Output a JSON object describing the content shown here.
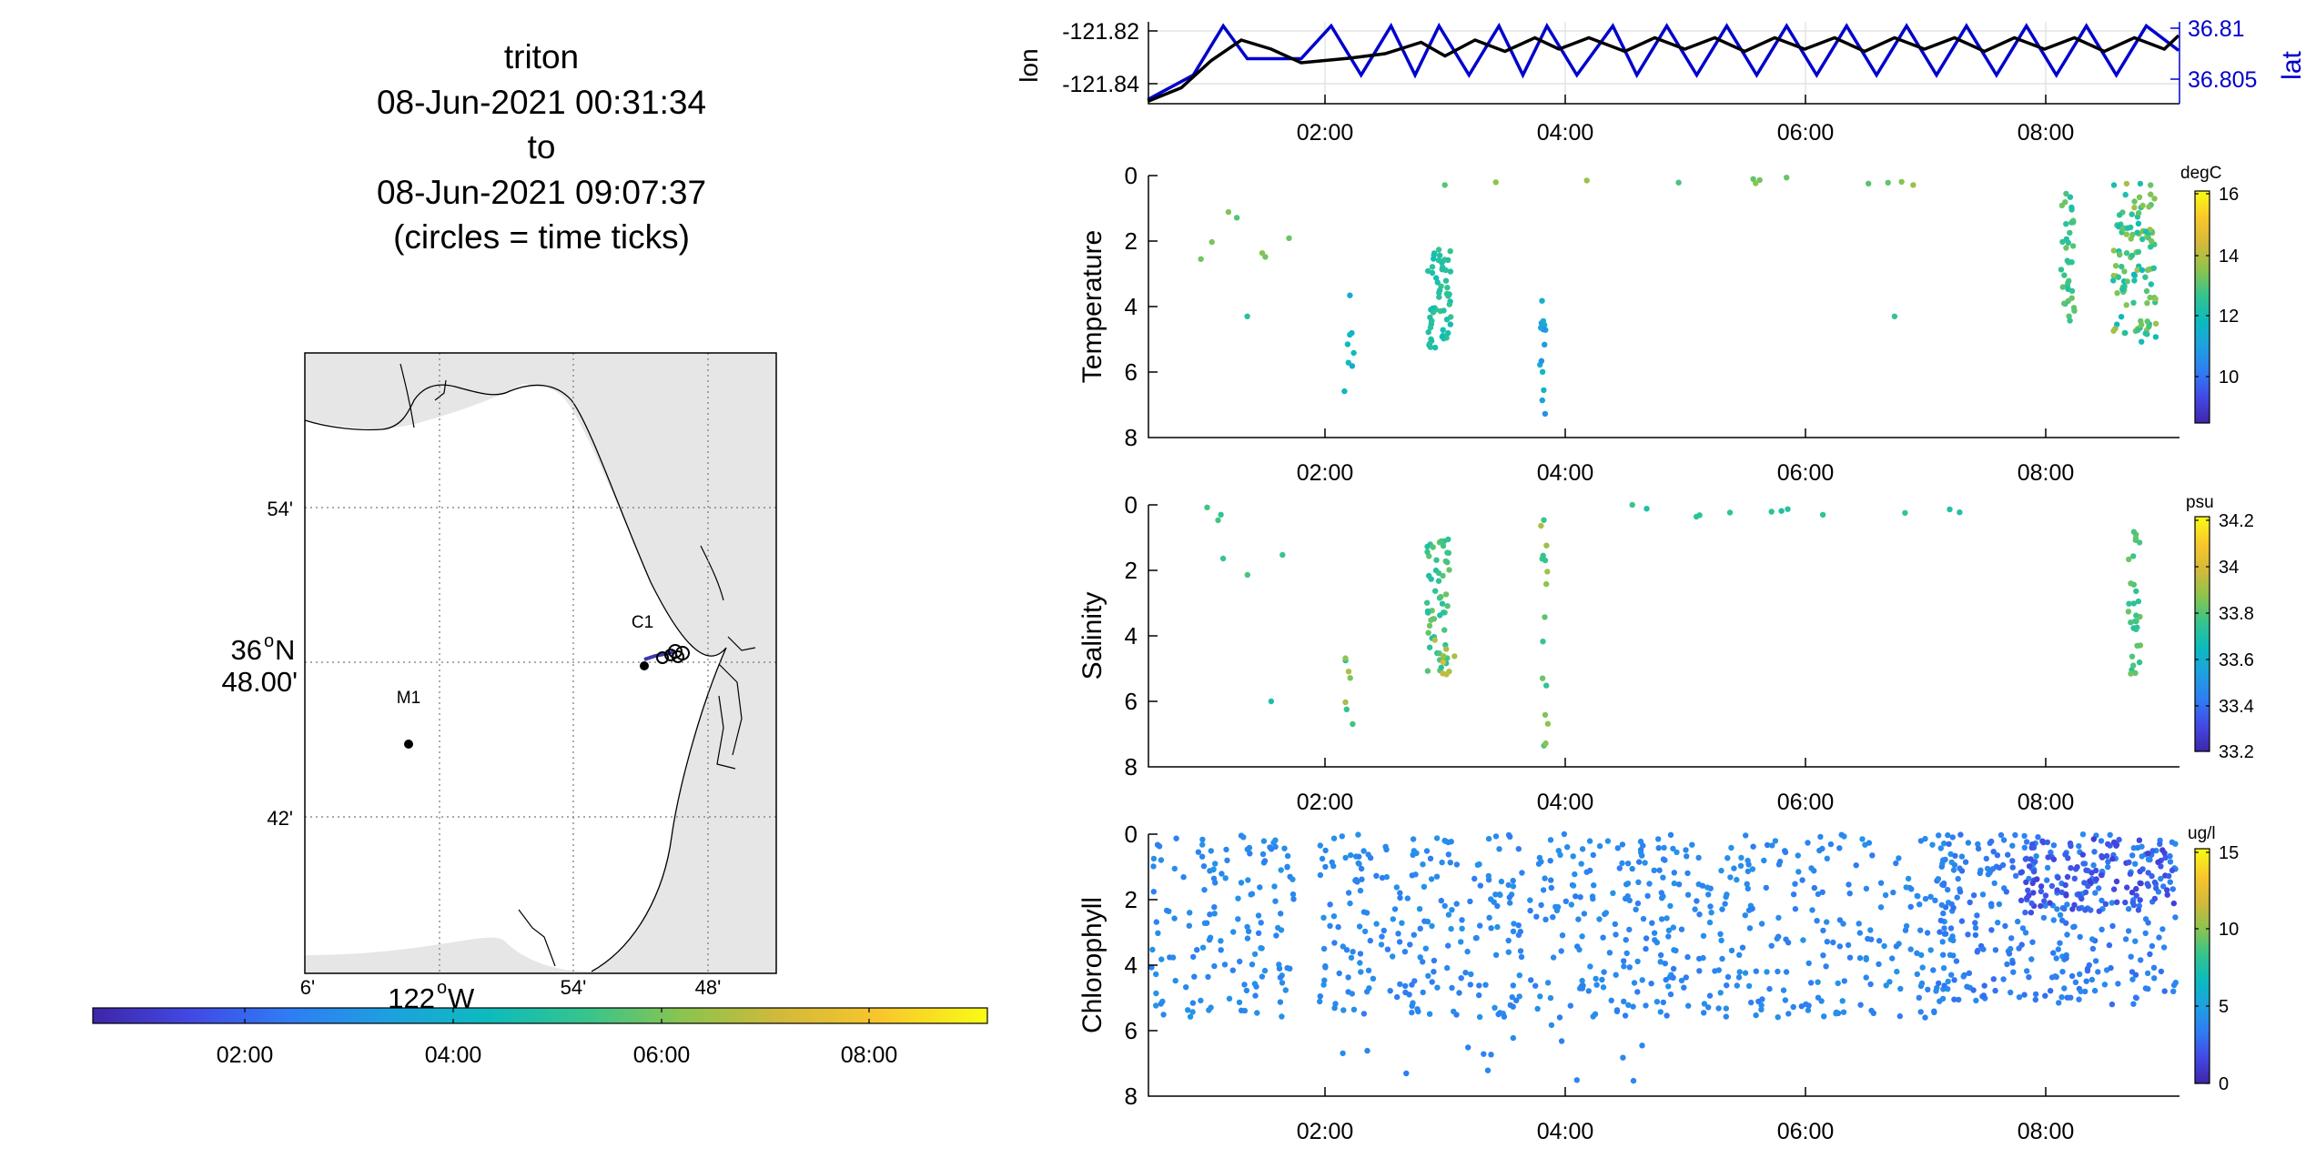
{
  "title": {
    "lines": [
      "triton",
      "08-Jun-2021 00:31:34",
      "to",
      "08-Jun-2021 09:07:37",
      "(circles = time ticks)"
    ]
  },
  "colors": {
    "lon_line": "#000000",
    "lat_line": "#0000cc",
    "land": "#e6e6e6",
    "colormap": [
      "#3e26a8",
      "#4249e4",
      "#2f7df3",
      "#1ea0e0",
      "#0cbbbe",
      "#35c48d",
      "#8bc44e",
      "#d3b93a",
      "#f8c62c",
      "#f9fb15"
    ]
  },
  "chart_data": [
    {
      "type": "map",
      "name": "track-map",
      "lat_ticks": [
        "54'",
        "36",
        "N",
        "48.00'",
        "42'"
      ],
      "lon_ticks": [
        "6'",
        "122",
        "W",
        "54'",
        "48'"
      ],
      "stations": [
        {
          "label": "C1",
          "lat": 36.8,
          "lon": -121.842
        },
        {
          "label": "M1",
          "lat": 36.747,
          "lon": -122.022
        }
      ],
      "colorbar": {
        "ticks": [
          "02:00",
          "04:00",
          "06:00",
          "08:00"
        ]
      }
    },
    {
      "type": "line",
      "name": "lon-lat",
      "ylabel_left": "lon",
      "ylabel_right": "lat",
      "left_ticks": [
        "-121.82",
        "-121.84"
      ],
      "right_ticks": [
        "36.81",
        "36.805"
      ],
      "x_ticks": [
        "02:00",
        "04:00",
        "06:00",
        "08:00"
      ],
      "ylim_lon": [
        -121.851,
        -121.815
      ],
      "ylim_lat": [
        36.8015,
        36.8115
      ],
      "series": [
        {
          "name": "lon",
          "x": [
            0.52,
            0.8,
            1.05,
            1.3,
            1.55,
            1.8,
            2.2,
            2.5,
            2.8,
            3.0,
            3.25,
            3.5,
            3.75,
            3.95,
            4.2,
            4.5,
            4.75,
            5.0,
            5.25,
            5.5,
            5.75,
            6.0,
            6.25,
            6.5,
            6.75,
            7.0,
            7.25,
            7.5,
            7.75,
            8.0,
            8.25,
            8.5,
            8.75,
            9.0,
            9.12
          ],
          "y": [
            -121.85,
            -121.844,
            -121.832,
            -121.823,
            -121.827,
            -121.833,
            -121.831,
            -121.829,
            -121.824,
            -121.83,
            -121.823,
            -121.828,
            -121.822,
            -121.827,
            -121.822,
            -121.828,
            -121.822,
            -121.827,
            -121.822,
            -121.828,
            -121.822,
            -121.827,
            -121.822,
            -121.828,
            -121.822,
            -121.827,
            -121.822,
            -121.828,
            -121.822,
            -121.827,
            -121.822,
            -121.828,
            -121.822,
            -121.827,
            -121.821
          ]
        },
        {
          "name": "lat",
          "x": [
            0.52,
            0.9,
            1.15,
            1.35,
            1.6,
            1.8,
            2.05,
            2.3,
            2.55,
            2.75,
            2.95,
            3.2,
            3.45,
            3.65,
            3.85,
            4.1,
            4.4,
            4.6,
            4.85,
            5.1,
            5.35,
            5.6,
            5.85,
            6.1,
            6.35,
            6.6,
            6.85,
            7.1,
            7.35,
            7.6,
            7.85,
            8.1,
            8.35,
            8.6,
            8.85,
            9.12
          ],
          "y": [
            36.802,
            36.805,
            36.811,
            36.807,
            36.807,
            36.807,
            36.811,
            36.805,
            36.811,
            36.805,
            36.811,
            36.805,
            36.811,
            36.805,
            36.811,
            36.805,
            36.811,
            36.805,
            36.811,
            36.805,
            36.811,
            36.805,
            36.811,
            36.805,
            36.811,
            36.805,
            36.811,
            36.805,
            36.811,
            36.805,
            36.811,
            36.805,
            36.811,
            36.805,
            36.811,
            36.808
          ]
        }
      ]
    },
    {
      "type": "scatter",
      "name": "temperature",
      "ylabel": "Temperature",
      "units": "degC",
      "y_ticks": [
        "0",
        "2",
        "4",
        "6",
        "8"
      ],
      "x_ticks": [
        "02:00",
        "04:00",
        "06:00",
        "08:00"
      ],
      "xlim": [
        0.5258,
        9.1269
      ],
      "ylim": [
        0,
        8
      ],
      "clim": [
        8.5,
        16.2
      ],
      "colorbar_ticks": [
        "16",
        "14",
        "12",
        "10"
      ],
      "groups": [
        {
          "xc": 2.95,
          "xs": 0.1,
          "y0": 2.2,
          "y1": 5.3,
          "n": 60,
          "v0": 12.0,
          "v1": 12.8
        },
        {
          "xc": 2.2,
          "xs": 0.05,
          "y0": 3.2,
          "y1": 6.7,
          "n": 8,
          "v0": 11.2,
          "v1": 12.0
        },
        {
          "xc": 3.82,
          "xs": 0.03,
          "y0": 2.9,
          "y1": 7.9,
          "n": 14,
          "v0": 10.5,
          "v1": 12.2
        },
        {
          "xc": 8.2,
          "xs": 0.06,
          "y0": 0.4,
          "y1": 4.6,
          "n": 35,
          "v0": 12.3,
          "v1": 13.4
        },
        {
          "xc": 8.75,
          "xs": 0.18,
          "y0": 0.2,
          "y1": 5.3,
          "n": 110,
          "v0": 11.8,
          "v1": 14.0
        },
        {
          "xc": 4.95,
          "xs": 2.0,
          "y0": 0.0,
          "y1": 0.3,
          "n": 12,
          "v0": 13.0,
          "v1": 13.8
        },
        {
          "xc": 1.3,
          "xs": 0.5,
          "y0": 0.0,
          "y1": 2.6,
          "n": 7,
          "v0": 13.0,
          "v1": 13.6
        },
        {
          "xc": 1.35,
          "xs": 0.0,
          "y0": 4.3,
          "y1": 4.3,
          "n": 1,
          "v0": 12.5,
          "v1": 12.5
        },
        {
          "xc": 6.75,
          "xs": 0.0,
          "y0": 4.3,
          "y1": 4.3,
          "n": 1,
          "v0": 12.8,
          "v1": 12.8
        }
      ]
    },
    {
      "type": "scatter",
      "name": "salinity",
      "ylabel": "Salinity",
      "units": "psu",
      "y_ticks": [
        "0",
        "2",
        "4",
        "6",
        "8"
      ],
      "x_ticks": [
        "02:00",
        "04:00",
        "06:00",
        "08:00"
      ],
      "xlim": [
        0.5258,
        9.1269
      ],
      "ylim": [
        0,
        8
      ],
      "clim": [
        33.2,
        34.22
      ],
      "colorbar_ticks": [
        "34.2",
        "34",
        "33.8",
        "33.6",
        "33.4",
        "33.2"
      ],
      "groups": [
        {
          "xc": 2.95,
          "xs": 0.1,
          "y0": 1.0,
          "y1": 5.2,
          "n": 55,
          "v0": 33.7,
          "v1": 33.85
        },
        {
          "xc": 3.0,
          "xs": 0.1,
          "y0": 4.1,
          "y1": 5.2,
          "n": 8,
          "v0": 33.9,
          "v1": 34.05
        },
        {
          "xc": 2.2,
          "xs": 0.05,
          "y0": 4.3,
          "y1": 6.9,
          "n": 7,
          "v0": 33.7,
          "v1": 33.95
        },
        {
          "xc": 3.83,
          "xs": 0.03,
          "y0": 0.3,
          "y1": 7.9,
          "n": 16,
          "v0": 33.75,
          "v1": 33.95
        },
        {
          "xc": 8.75,
          "xs": 0.05,
          "y0": 0.7,
          "y1": 5.3,
          "n": 30,
          "v0": 33.72,
          "v1": 33.85
        },
        {
          "xc": 5.6,
          "xs": 1.9,
          "y0": 0.0,
          "y1": 0.4,
          "n": 12,
          "v0": 33.7,
          "v1": 33.78
        },
        {
          "xc": 1.2,
          "xs": 0.55,
          "y0": 0.0,
          "y1": 2.6,
          "n": 6,
          "v0": 33.7,
          "v1": 33.8
        },
        {
          "xc": 1.55,
          "xs": 0.0,
          "y0": 6.0,
          "y1": 6.0,
          "n": 1,
          "v0": 33.7,
          "v1": 33.7
        }
      ]
    },
    {
      "type": "scatter",
      "name": "chlorophyll",
      "ylabel": "Chlorophyll",
      "units": "ug/l",
      "y_ticks": [
        "0",
        "2",
        "4",
        "6",
        "8"
      ],
      "x_ticks": [
        "02:00",
        "04:00",
        "06:00",
        "08:00"
      ],
      "xlim": [
        0.5258,
        9.1269
      ],
      "ylim": [
        0,
        8
      ],
      "clim": [
        0,
        15.3
      ],
      "colorbar_ticks": [
        "15",
        "10",
        "5",
        "0"
      ],
      "groups": [
        {
          "xc": 1.15,
          "xs": 0.6,
          "y0": 0.0,
          "y1": 5.6,
          "n": 140,
          "v0": 3.5,
          "v1": 4.6
        },
        {
          "xc": 3.45,
          "xs": 1.5,
          "y0": 0.0,
          "y1": 5.6,
          "n": 380,
          "v0": 3.3,
          "v1": 4.5
        },
        {
          "xc": 3.5,
          "xs": 1.4,
          "y0": 5.8,
          "y1": 7.6,
          "n": 14,
          "v0": 3.3,
          "v1": 4.2
        },
        {
          "xc": 6.1,
          "xs": 1.2,
          "y0": 0.0,
          "y1": 5.6,
          "n": 260,
          "v0": 3.3,
          "v1": 4.5
        },
        {
          "xc": 8.1,
          "xs": 1.0,
          "y0": 0.0,
          "y1": 5.2,
          "n": 300,
          "v0": 2.8,
          "v1": 4.2
        },
        {
          "xc": 8.45,
          "xs": 0.65,
          "y0": 0.1,
          "y1": 2.4,
          "n": 120,
          "v0": 1.2,
          "v1": 2.6
        }
      ]
    }
  ]
}
